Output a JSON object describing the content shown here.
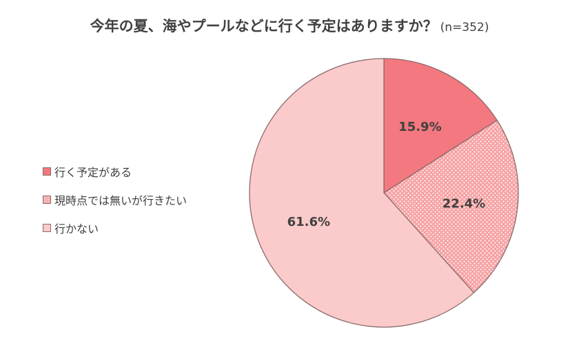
{
  "chart_data": {
    "type": "pie",
    "title": "今年の夏、海やプールなどに行く予定はありますか？",
    "subtitle": "(n=352)",
    "legend_position": "left",
    "slices": [
      {
        "label": "行く予定がある",
        "value": 15.9,
        "value_label": "15.9%",
        "color": "#f3787f",
        "pattern": "solid"
      },
      {
        "label": "現時点では無いが行きたい",
        "value": 22.4,
        "value_label": "22.4%",
        "color": "#f6a9aa",
        "pattern": "dots"
      },
      {
        "label": "行かない",
        "value": 61.6,
        "value_label": "61.6%",
        "color": "#fbcaca",
        "pattern": "solid"
      }
    ]
  }
}
